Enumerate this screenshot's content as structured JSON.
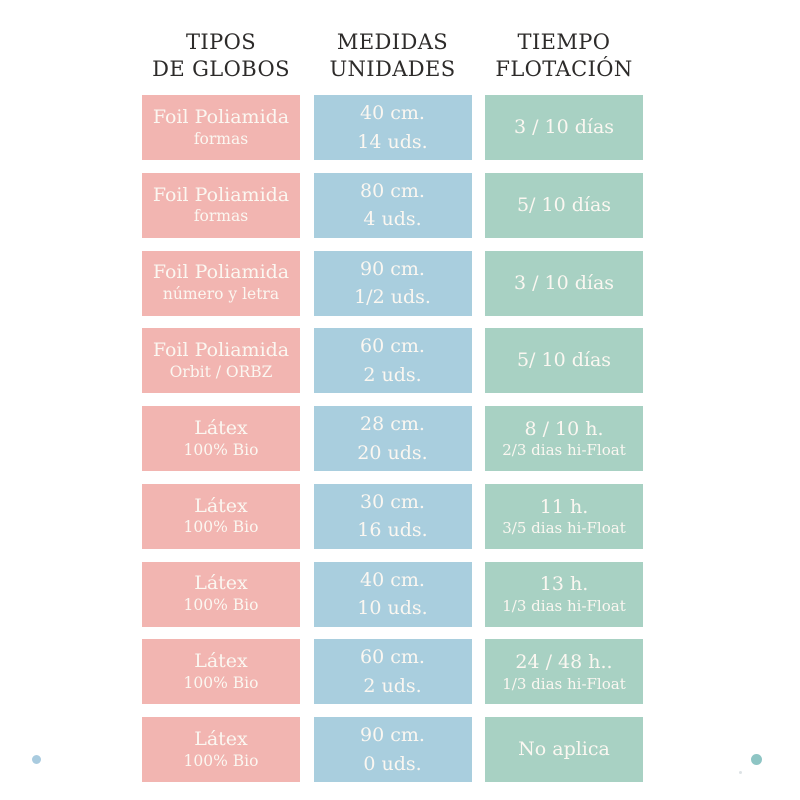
{
  "header": {
    "columns": [
      {
        "line1": "TIPOS",
        "line2": "DE GLOBOS"
      },
      {
        "line1": "MEDIDAS",
        "line2": "UNIDADES"
      },
      {
        "line1": "TIEMPO",
        "line2": "FLOTACIÓN"
      }
    ]
  },
  "table": {
    "rows": [
      {
        "tipo": [
          "Foil Poliamida",
          "formas"
        ],
        "medida": [
          "40 cm.",
          "14 uds."
        ],
        "tiempo": [
          "3 / 10 días",
          ""
        ]
      },
      {
        "tipo": [
          "Foil Poliamida",
          "formas"
        ],
        "medida": [
          "80 cm.",
          "4 uds."
        ],
        "tiempo": [
          "5/ 10 días",
          ""
        ]
      },
      {
        "tipo": [
          "Foil Poliamida",
          "número y letra"
        ],
        "medida": [
          "90 cm.",
          "1/2 uds."
        ],
        "tiempo": [
          "3 / 10 días",
          ""
        ]
      },
      {
        "tipo": [
          "Foil Poliamida",
          "Orbit / ORBZ"
        ],
        "medida": [
          "60 cm.",
          "2 uds."
        ],
        "tiempo": [
          "5/ 10 días",
          ""
        ]
      },
      {
        "tipo": [
          "Látex",
          "100% Bio"
        ],
        "medida": [
          "28 cm.",
          "20 uds."
        ],
        "tiempo": [
          "8 / 10 h.",
          "2/3 dias hi-Float"
        ]
      },
      {
        "tipo": [
          "Látex",
          "100% Bio"
        ],
        "medida": [
          "30 cm.",
          "16 uds."
        ],
        "tiempo": [
          "11 h.",
          "3/5 dias hi-Float"
        ]
      },
      {
        "tipo": [
          "Látex",
          "100% Bio"
        ],
        "medida": [
          "40 cm.",
          "10 uds."
        ],
        "tiempo": [
          "13 h.",
          "1/3 dias hi-Float"
        ]
      },
      {
        "tipo": [
          "Látex",
          "100% Bio"
        ],
        "medida": [
          "60 cm.",
          "2 uds."
        ],
        "tiempo": [
          "24 / 48 h..",
          "1/3 dias hi-Float"
        ]
      },
      {
        "tipo": [
          "Látex",
          "100% Bio"
        ],
        "medida": [
          "90 cm.",
          "0 uds."
        ],
        "tiempo": [
          "No aplica",
          ""
        ]
      }
    ]
  },
  "chart_data": {
    "type": "table",
    "columns": [
      "TIPOS DE GLOBOS",
      "MEDIDAS UNIDADES",
      "TIEMPO FLOTACIÓN"
    ],
    "rows": [
      [
        "Foil Poliamida formas",
        "40 cm. 14 uds.",
        "3 / 10 días"
      ],
      [
        "Foil Poliamida formas",
        "80 cm. 4 uds.",
        "5/ 10 días"
      ],
      [
        "Foil Poliamida número y letra",
        "90 cm. 1/2 uds.",
        "3 / 10 días"
      ],
      [
        "Foil Poliamida Orbit / ORBZ",
        "60 cm. 2 uds.",
        "5/ 10 días"
      ],
      [
        "Látex 100% Bio",
        "28 cm. 20 uds.",
        "8 / 10 h. 2/3 dias hi-Float"
      ],
      [
        "Látex 100% Bio",
        "30 cm. 16 uds.",
        "11 h. 3/5 dias hi-Float"
      ],
      [
        "Látex 100% Bio",
        "40 cm. 10 uds.",
        "13 h. 1/3 dias hi-Float"
      ],
      [
        "Látex 100% Bio",
        "60 cm. 2 uds.",
        "24 / 48 h.. 1/3 dias hi-Float"
      ],
      [
        "Látex 100% Bio",
        "90 cm. 0 uds.",
        "No aplica"
      ]
    ]
  },
  "colors": {
    "tipo_box": "#f2b5b1",
    "medida_box": "#a9cede",
    "tiempo_box": "#a8d1c3",
    "header_text": "#2d2b2a",
    "box_text": "#fbf7f1",
    "dot_left": "#a9cbdf",
    "dot_right": "#8ec5c4"
  }
}
